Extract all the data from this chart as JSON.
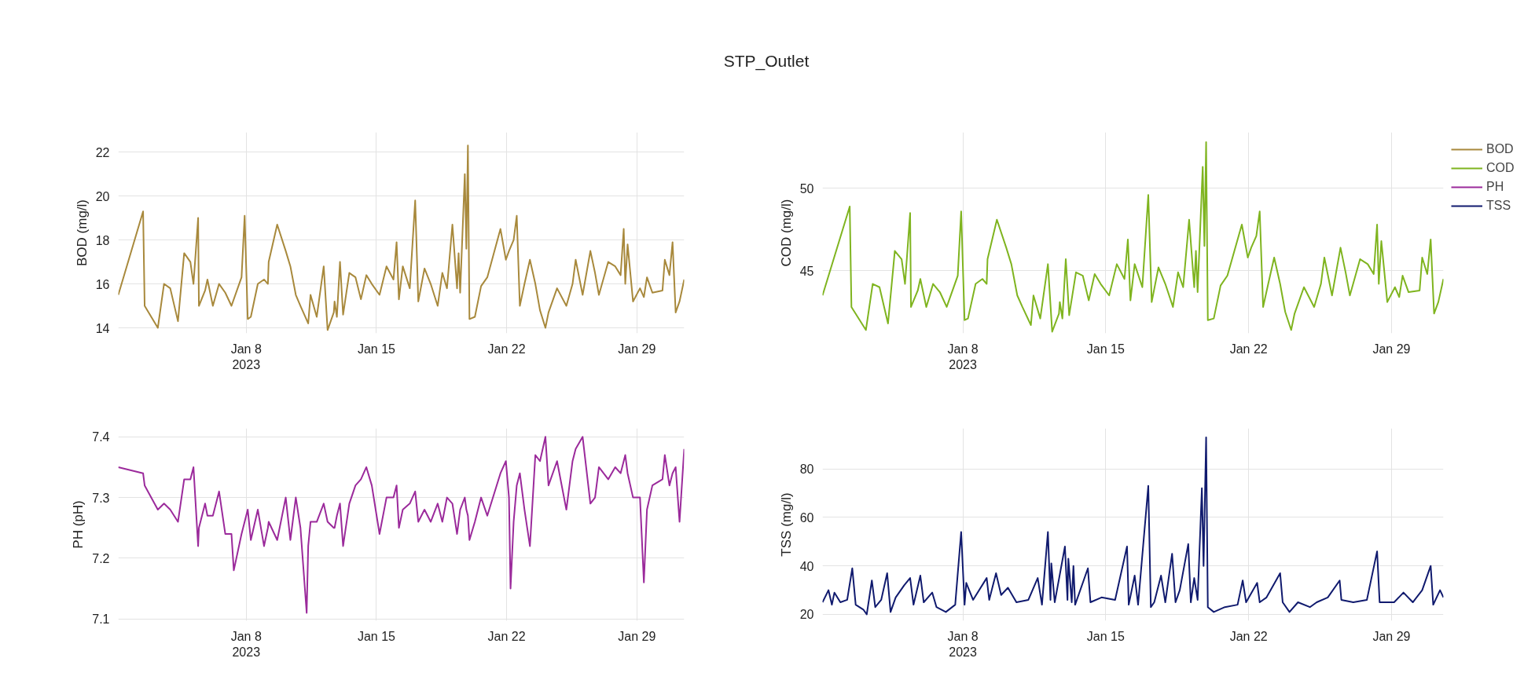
{
  "chart_data": [
    {
      "type": "line",
      "ylabel": "BOD (mg/l)",
      "grid": true,
      "legend": "top right",
      "xlim": [
        "2023-01-01T03:00",
        "2023-01-31T13:00"
      ],
      "ylim": [
        13.75,
        22.9
      ],
      "yticks": [
        14,
        16,
        18,
        20,
        22
      ],
      "xticks": [
        {
          "value": "2023-01-08",
          "label": "Jan 8\n2023"
        },
        {
          "value": "2023-01-15",
          "label": "Jan 15"
        },
        {
          "value": "2023-01-22",
          "label": "Jan 22"
        },
        {
          "value": "2023-01-29",
          "label": "Jan 29"
        }
      ],
      "x": [
        "2023-01-01T03:00",
        "2023-01-02T11:00",
        "2023-01-02T13:00",
        "2023-01-03T06:00",
        "2023-01-03T14:00",
        "2023-01-03T22:00",
        "2023-01-04T08:00",
        "2023-01-04T16:00",
        "2023-01-05T00:00",
        "2023-01-05T04:00",
        "2023-01-05T10:00",
        "2023-01-05T11:00",
        "2023-01-05T19:00",
        "2023-01-05T22:00",
        "2023-01-06T05:00",
        "2023-01-06T13:00",
        "2023-01-06T21:00",
        "2023-01-07T05:00",
        "2023-01-07T18:00",
        "2023-01-07T22:00",
        "2023-01-08T02:00",
        "2023-01-08T06:00",
        "2023-01-08T15:00",
        "2023-01-08T23:00",
        "2023-01-09T04:00",
        "2023-01-09T05:00",
        "2023-01-09T16:00",
        "2023-01-10T03:00",
        "2023-01-10T09:00",
        "2023-01-10T16:00",
        "2023-01-10T22:00",
        "2023-01-11T08:00",
        "2023-01-11T11:00",
        "2023-01-11T19:00",
        "2023-01-12T04:00",
        "2023-01-12T09:00",
        "2023-01-12T17:00",
        "2023-01-12T18:00",
        "2023-01-12T21:00",
        "2023-01-13T01:00",
        "2023-01-13T05:00",
        "2023-01-13T13:00",
        "2023-01-13T21:00",
        "2023-01-14T04:00",
        "2023-01-14T11:00",
        "2023-01-14T18:00",
        "2023-01-15T04:00",
        "2023-01-15T13:00",
        "2023-01-15T22:00",
        "2023-01-16T02:00",
        "2023-01-16T05:00",
        "2023-01-16T10:00",
        "2023-01-16T19:00",
        "2023-01-17T02:00",
        "2023-01-17T06:00",
        "2023-01-17T14:00",
        "2023-01-17T22:00",
        "2023-01-18T07:00",
        "2023-01-18T13:00",
        "2023-01-18T19:00",
        "2023-01-19T02:00",
        "2023-01-19T08:00",
        "2023-01-19T10:00",
        "2023-01-19T12:00",
        "2023-01-19T18:00",
        "2023-01-19T20:00",
        "2023-01-19T22:00",
        "2023-01-20T00:00",
        "2023-01-20T07:00",
        "2023-01-20T15:00",
        "2023-01-20T23:00",
        "2023-01-21T16:00",
        "2023-01-21T23:00",
        "2023-01-22T03:00",
        "2023-01-22T09:00",
        "2023-01-22T13:00",
        "2023-01-22T17:00",
        "2023-01-22T23:00",
        "2023-01-23T06:00",
        "2023-01-23T13:00",
        "2023-01-23T19:00",
        "2023-01-24T02:00",
        "2023-01-24T06:00",
        "2023-01-24T17:00",
        "2023-01-25T05:00",
        "2023-01-25T13:00",
        "2023-01-25T17:00",
        "2023-01-26T02:00",
        "2023-01-26T12:00",
        "2023-01-26T18:00",
        "2023-01-26T23:00",
        "2023-01-27T11:00",
        "2023-01-27T20:00",
        "2023-01-28T03:00",
        "2023-01-28T07:00",
        "2023-01-28T09:00",
        "2023-01-28T12:00",
        "2023-01-28T19:00",
        "2023-01-29T04:00",
        "2023-01-29T09:00",
        "2023-01-29T13:00",
        "2023-01-29T20:00",
        "2023-01-30T09:00",
        "2023-01-30T12:00",
        "2023-01-30T18:00",
        "2023-01-30T22:00",
        "2023-01-31T02:00",
        "2023-01-31T07:00",
        "2023-01-31T13:00"
      ],
      "series": [
        {
          "name": "BOD",
          "color": "#a8893c",
          "values": [
            15.5,
            19.3,
            15.0,
            14.0,
            16.0,
            15.8,
            14.3,
            17.4,
            17.0,
            16.0,
            19.0,
            15.0,
            15.7,
            16.2,
            15.0,
            16.0,
            15.6,
            15.0,
            16.3,
            19.1,
            14.4,
            14.5,
            16.0,
            16.2,
            16.0,
            17.0,
            18.7,
            17.5,
            16.8,
            15.5,
            15.0,
            14.2,
            15.5,
            14.5,
            16.8,
            13.9,
            14.7,
            15.2,
            14.5,
            17.0,
            14.6,
            16.5,
            16.3,
            15.3,
            16.4,
            16.0,
            15.5,
            16.8,
            16.2,
            17.9,
            15.3,
            16.8,
            15.8,
            19.8,
            15.2,
            16.7,
            16.0,
            15.0,
            16.5,
            15.8,
            18.7,
            15.8,
            17.4,
            15.6,
            21.0,
            17.6,
            22.3,
            14.4,
            14.5,
            15.9,
            16.3,
            18.5,
            17.1,
            17.5,
            18.0,
            19.1,
            15.0,
            16.0,
            17.1,
            16.0,
            14.8,
            14.0,
            14.7,
            15.8,
            15.0,
            16.0,
            17.1,
            15.5,
            17.5,
            16.5,
            15.5,
            17.0,
            16.8,
            16.4,
            18.5,
            16.0,
            17.8,
            15.2,
            15.8,
            15.4,
            16.3,
            15.6,
            15.7,
            17.1,
            16.4,
            17.9,
            14.7,
            15.2,
            16.2
          ]
        }
      ]
    },
    {
      "type": "line",
      "title": "STP_Outlet",
      "ylabel": "COD (mg/l)",
      "grid": true,
      "legend": "top right",
      "xlim": [
        "2023-01-01T03:00",
        "2023-01-31T13:00"
      ],
      "ylim": [
        41.2,
        53.4
      ],
      "yticks": [
        45,
        50
      ],
      "xticks": [
        {
          "value": "2023-01-08",
          "label": "Jan 8\n2023"
        },
        {
          "value": "2023-01-15",
          "label": "Jan 15"
        },
        {
          "value": "2023-01-22",
          "label": "Jan 22"
        },
        {
          "value": "2023-01-29",
          "label": "Jan 29"
        }
      ],
      "x": [
        "2023-01-01T03:00",
        "2023-01-02T11:00",
        "2023-01-02T13:00",
        "2023-01-03T06:00",
        "2023-01-03T14:00",
        "2023-01-03T22:00",
        "2023-01-04T08:00",
        "2023-01-04T16:00",
        "2023-01-05T00:00",
        "2023-01-05T04:00",
        "2023-01-05T10:00",
        "2023-01-05T11:00",
        "2023-01-05T19:00",
        "2023-01-05T22:00",
        "2023-01-06T05:00",
        "2023-01-06T13:00",
        "2023-01-06T21:00",
        "2023-01-07T05:00",
        "2023-01-07T18:00",
        "2023-01-07T22:00",
        "2023-01-08T02:00",
        "2023-01-08T06:00",
        "2023-01-08T15:00",
        "2023-01-08T23:00",
        "2023-01-09T04:00",
        "2023-01-09T05:00",
        "2023-01-09T16:00",
        "2023-01-10T03:00",
        "2023-01-10T09:00",
        "2023-01-10T16:00",
        "2023-01-10T22:00",
        "2023-01-11T08:00",
        "2023-01-11T11:00",
        "2023-01-11T19:00",
        "2023-01-12T04:00",
        "2023-01-12T09:00",
        "2023-01-12T17:00",
        "2023-01-12T18:00",
        "2023-01-12T21:00",
        "2023-01-13T01:00",
        "2023-01-13T05:00",
        "2023-01-13T13:00",
        "2023-01-13T21:00",
        "2023-01-14T04:00",
        "2023-01-14T11:00",
        "2023-01-14T18:00",
        "2023-01-15T04:00",
        "2023-01-15T13:00",
        "2023-01-15T22:00",
        "2023-01-16T02:00",
        "2023-01-16T05:00",
        "2023-01-16T10:00",
        "2023-01-16T19:00",
        "2023-01-17T02:00",
        "2023-01-17T06:00",
        "2023-01-17T14:00",
        "2023-01-17T22:00",
        "2023-01-18T07:00",
        "2023-01-18T13:00",
        "2023-01-18T19:00",
        "2023-01-19T02:00",
        "2023-01-19T08:00",
        "2023-01-19T10:00",
        "2023-01-19T12:00",
        "2023-01-19T18:00",
        "2023-01-19T20:00",
        "2023-01-19T22:00",
        "2023-01-20T00:00",
        "2023-01-20T07:00",
        "2023-01-20T15:00",
        "2023-01-20T23:00",
        "2023-01-21T16:00",
        "2023-01-21T23:00",
        "2023-01-22T03:00",
        "2023-01-22T09:00",
        "2023-01-22T13:00",
        "2023-01-22T17:00",
        "2023-01-22T23:00",
        "2023-01-23T06:00",
        "2023-01-23T13:00",
        "2023-01-23T19:00",
        "2023-01-24T02:00",
        "2023-01-24T06:00",
        "2023-01-24T17:00",
        "2023-01-25T05:00",
        "2023-01-25T13:00",
        "2023-01-25T17:00",
        "2023-01-26T02:00",
        "2023-01-26T12:00",
        "2023-01-26T18:00",
        "2023-01-26T23:00",
        "2023-01-27T11:00",
        "2023-01-27T20:00",
        "2023-01-28T03:00",
        "2023-01-28T07:00",
        "2023-01-28T09:00",
        "2023-01-28T12:00",
        "2023-01-28T19:00",
        "2023-01-29T04:00",
        "2023-01-29T09:00",
        "2023-01-29T13:00",
        "2023-01-29T20:00",
        "2023-01-30T09:00",
        "2023-01-30T12:00",
        "2023-01-30T18:00",
        "2023-01-30T22:00",
        "2023-01-31T02:00",
        "2023-01-31T07:00",
        "2023-01-31T13:00"
      ],
      "series": [
        {
          "name": "COD",
          "color": "#7fb41f",
          "values": [
            43.5,
            48.9,
            42.8,
            41.4,
            44.2,
            44.0,
            41.8,
            46.2,
            45.7,
            44.2,
            48.5,
            42.8,
            43.8,
            44.5,
            42.8,
            44.2,
            43.7,
            42.8,
            44.7,
            48.6,
            42.0,
            42.1,
            44.2,
            44.5,
            44.2,
            45.7,
            48.1,
            46.4,
            45.4,
            43.5,
            42.8,
            41.7,
            43.5,
            42.1,
            45.4,
            41.3,
            42.4,
            43.1,
            42.1,
            45.7,
            42.3,
            44.9,
            44.7,
            43.2,
            44.8,
            44.2,
            43.5,
            45.4,
            44.5,
            46.9,
            43.2,
            45.4,
            44.0,
            49.6,
            43.1,
            45.2,
            44.2,
            42.8,
            44.9,
            44.0,
            48.1,
            44.0,
            46.2,
            43.7,
            51.3,
            46.5,
            52.8,
            42.0,
            42.1,
            44.1,
            44.7,
            47.8,
            45.8,
            46.4,
            47.1,
            48.6,
            42.8,
            44.2,
            45.8,
            44.2,
            42.5,
            41.4,
            42.4,
            44.0,
            42.8,
            44.2,
            45.8,
            43.5,
            46.4,
            44.9,
            43.5,
            45.7,
            45.4,
            44.8,
            47.8,
            44.2,
            46.8,
            43.1,
            44.0,
            43.4,
            44.7,
            43.7,
            43.8,
            45.8,
            44.8,
            46.9,
            42.4,
            43.1,
            44.5
          ]
        }
      ]
    },
    {
      "type": "line",
      "ylabel": "PH (pH)",
      "grid": true,
      "legend": "top right",
      "xlim": [
        "2023-01-01T03:00",
        "2023-01-31T13:00"
      ],
      "ylim": [
        7.097,
        7.414
      ],
      "yticks": [
        7.1,
        7.2,
        7.3,
        7.4
      ],
      "xticks": [
        {
          "value": "2023-01-08",
          "label": "Jan 8\n2023"
        },
        {
          "value": "2023-01-15",
          "label": "Jan 15"
        },
        {
          "value": "2023-01-22",
          "label": "Jan 22"
        },
        {
          "value": "2023-01-29",
          "label": "Jan 29"
        }
      ],
      "x": [
        "2023-01-01T03:00",
        "2023-01-02T11:00",
        "2023-01-02T13:00",
        "2023-01-03T06:00",
        "2023-01-03T14:00",
        "2023-01-03T22:00",
        "2023-01-04T08:00",
        "2023-01-04T16:00",
        "2023-01-05T00:00",
        "2023-01-05T04:00",
        "2023-01-05T10:00",
        "2023-01-05T11:00",
        "2023-01-05T19:00",
        "2023-01-05T22:00",
        "2023-01-06T05:00",
        "2023-01-06T13:00",
        "2023-01-06T21:00",
        "2023-01-07T05:00",
        "2023-01-07T08:00",
        "2023-01-07T18:00",
        "2023-01-07T22:00",
        "2023-01-08T02:00",
        "2023-01-08T06:00",
        "2023-01-08T15:00",
        "2023-01-08T23:00",
        "2023-01-09T04:00",
        "2023-01-09T05:00",
        "2023-01-09T16:00",
        "2023-01-10T03:00",
        "2023-01-10T09:00",
        "2023-01-10T16:00",
        "2023-01-10T22:00",
        "2023-01-11T06:00",
        "2023-01-11T08:00",
        "2023-01-11T11:00",
        "2023-01-11T19:00",
        "2023-01-12T04:00",
        "2023-01-12T09:00",
        "2023-01-12T17:00",
        "2023-01-12T18:00",
        "2023-01-12T21:00",
        "2023-01-13T01:00",
        "2023-01-13T05:00",
        "2023-01-13T13:00",
        "2023-01-13T21:00",
        "2023-01-14T04:00",
        "2023-01-14T11:00",
        "2023-01-14T18:00",
        "2023-01-15T04:00",
        "2023-01-15T13:00",
        "2023-01-15T22:00",
        "2023-01-16T02:00",
        "2023-01-16T05:00",
        "2023-01-16T10:00",
        "2023-01-16T19:00",
        "2023-01-17T02:00",
        "2023-01-17T06:00",
        "2023-01-17T14:00",
        "2023-01-17T22:00",
        "2023-01-18T07:00",
        "2023-01-18T13:00",
        "2023-01-18T19:00",
        "2023-01-19T02:00",
        "2023-01-19T08:00",
        "2023-01-19T10:00",
        "2023-01-19T12:00",
        "2023-01-19T18:00",
        "2023-01-19T20:00",
        "2023-01-19T22:00",
        "2023-01-20T00:00",
        "2023-01-20T07:00",
        "2023-01-20T15:00",
        "2023-01-20T23:00",
        "2023-01-21T16:00",
        "2023-01-21T23:00",
        "2023-01-22T03:00",
        "2023-01-22T05:00",
        "2023-01-22T09:00",
        "2023-01-22T13:00",
        "2023-01-22T17:00",
        "2023-01-22T23:00",
        "2023-01-23T06:00",
        "2023-01-23T13:00",
        "2023-01-23T19:00",
        "2023-01-24T02:00",
        "2023-01-24T06:00",
        "2023-01-24T17:00",
        "2023-01-25T05:00",
        "2023-01-25T13:00",
        "2023-01-25T17:00",
        "2023-01-26T02:00",
        "2023-01-26T12:00",
        "2023-01-26T18:00",
        "2023-01-26T23:00",
        "2023-01-27T11:00",
        "2023-01-27T20:00",
        "2023-01-28T03:00",
        "2023-01-28T07:00",
        "2023-01-28T09:00",
        "2023-01-28T12:00",
        "2023-01-28T19:00",
        "2023-01-29T04:00",
        "2023-01-29T09:00",
        "2023-01-29T13:00",
        "2023-01-29T20:00",
        "2023-01-30T09:00",
        "2023-01-30T12:00",
        "2023-01-30T18:00",
        "2023-01-30T22:00",
        "2023-01-31T02:00",
        "2023-01-31T07:00",
        "2023-01-31T13:00"
      ],
      "series": [
        {
          "name": "PH",
          "color": "#9b2a9b",
          "values": [
            7.35,
            7.34,
            7.32,
            7.28,
            7.29,
            7.28,
            7.26,
            7.33,
            7.33,
            7.35,
            7.22,
            7.25,
            7.29,
            7.27,
            7.27,
            7.31,
            7.24,
            7.24,
            7.18,
            7.24,
            7.26,
            7.28,
            7.23,
            7.28,
            7.22,
            7.25,
            7.26,
            7.23,
            7.3,
            7.23,
            7.3,
            7.25,
            7.11,
            7.22,
            7.26,
            7.26,
            7.29,
            7.26,
            7.25,
            7.25,
            7.27,
            7.29,
            7.22,
            7.29,
            7.32,
            7.33,
            7.35,
            7.32,
            7.24,
            7.3,
            7.3,
            7.32,
            7.25,
            7.28,
            7.29,
            7.31,
            7.26,
            7.28,
            7.26,
            7.29,
            7.26,
            7.3,
            7.29,
            7.24,
            7.26,
            7.28,
            7.3,
            7.28,
            7.27,
            7.23,
            7.26,
            7.3,
            7.27,
            7.34,
            7.36,
            7.3,
            7.15,
            7.26,
            7.32,
            7.34,
            7.28,
            7.22,
            7.37,
            7.36,
            7.4,
            7.32,
            7.36,
            7.28,
            7.36,
            7.38,
            7.4,
            7.29,
            7.3,
            7.35,
            7.33,
            7.35,
            7.34,
            7.36,
            7.37,
            7.34,
            7.3,
            7.3,
            7.16,
            7.28,
            7.32,
            7.33,
            7.37,
            7.32,
            7.34,
            7.35,
            7.26,
            7.38
          ]
        }
      ]
    },
    {
      "type": "line",
      "ylabel": "TSS (mg/l)",
      "grid": true,
      "legend": "top right",
      "xlim": [
        "2023-01-01T03:00",
        "2023-01-31T13:00"
      ],
      "ylim": [
        17.4,
        96.7
      ],
      "yticks": [
        20,
        40,
        60,
        80
      ],
      "xticks": [
        {
          "value": "2023-01-08",
          "label": "Jan 8\n2023"
        },
        {
          "value": "2023-01-15",
          "label": "Jan 15"
        },
        {
          "value": "2023-01-22",
          "label": "Jan 22"
        },
        {
          "value": "2023-01-29",
          "label": "Jan 29"
        }
      ],
      "x": [
        "2023-01-01T03:00",
        "2023-01-01T10:00",
        "2023-01-01T14:00",
        "2023-01-01T17:00",
        "2023-01-02T00:00",
        "2023-01-02T08:00",
        "2023-01-02T14:00",
        "2023-01-02T18:00",
        "2023-01-03T03:00",
        "2023-01-03T07:00",
        "2023-01-03T13:00",
        "2023-01-03T17:00",
        "2023-01-04T00:00",
        "2023-01-04T07:00",
        "2023-01-04T11:00",
        "2023-01-04T17:00",
        "2023-01-05T03:00",
        "2023-01-05T10:00",
        "2023-01-05T14:00",
        "2023-01-05T22:00",
        "2023-01-06T02:00",
        "2023-01-06T12:00",
        "2023-01-06T17:00",
        "2023-01-07T04:00",
        "2023-01-07T15:00",
        "2023-01-07T22:00",
        "2023-01-08T02:00",
        "2023-01-08T04:00",
        "2023-01-08T12:00",
        "2023-01-09T04:00",
        "2023-01-09T07:00",
        "2023-01-09T15:00",
        "2023-01-09T21:00",
        "2023-01-10T05:00",
        "2023-01-10T15:00",
        "2023-01-11T05:00",
        "2023-01-11T16:00",
        "2023-01-11T21:00",
        "2023-01-12T04:00",
        "2023-01-12T07:00",
        "2023-01-12T08:00",
        "2023-01-12T12:00",
        "2023-01-13T00:00",
        "2023-01-13T03:00",
        "2023-01-13T04:00",
        "2023-01-13T08:00",
        "2023-01-13T10:00",
        "2023-01-13T12:00",
        "2023-01-14T03:00",
        "2023-01-14T06:00",
        "2023-01-14T19:00",
        "2023-01-15T11:00",
        "2023-01-16T01:00",
        "2023-01-16T03:00",
        "2023-01-16T10:00",
        "2023-01-16T14:00",
        "2023-01-17T02:00",
        "2023-01-17T05:00",
        "2023-01-17T09:00",
        "2023-01-17T17:00",
        "2023-01-17T22:00",
        "2023-01-18T06:00",
        "2023-01-18T10:00",
        "2023-01-18T15:00",
        "2023-01-19T01:00",
        "2023-01-19T04:00",
        "2023-01-19T08:00",
        "2023-01-19T12:00",
        "2023-01-19T17:00",
        "2023-01-19T19:00",
        "2023-01-19T22:00",
        "2023-01-20T00:00",
        "2023-01-20T07:00",
        "2023-01-20T20:00",
        "2023-01-21T11:00",
        "2023-01-21T17:00",
        "2023-01-21T21:00",
        "2023-01-22T10:00",
        "2023-01-22T13:00",
        "2023-01-22T21:00",
        "2023-01-23T13:00",
        "2023-01-23T16:00",
        "2023-01-24T00:00",
        "2023-01-24T10:00",
        "2023-01-25T00:00",
        "2023-01-25T08:00",
        "2023-01-25T21:00",
        "2023-01-26T11:00",
        "2023-01-26T13:00",
        "2023-01-27T03:00",
        "2023-01-27T19:00",
        "2023-01-28T07:00",
        "2023-01-28T10:00",
        "2023-01-29T03:00",
        "2023-01-29T14:00",
        "2023-01-30T01:00",
        "2023-01-30T12:00",
        "2023-01-30T22:00",
        "2023-01-31T01:00",
        "2023-01-31T09:00",
        "2023-01-31T13:00"
      ],
      "series": [
        {
          "name": "TSS",
          "color": "#101a6e",
          "values": [
            25,
            30,
            24,
            29,
            25,
            26,
            39,
            24,
            22,
            20,
            34,
            23,
            26,
            37,
            21,
            27,
            32,
            35,
            24,
            36,
            25,
            29,
            23,
            21,
            24,
            54,
            24,
            33,
            26,
            35,
            26,
            37,
            28,
            31,
            25,
            26,
            35,
            24,
            54,
            26,
            41,
            25,
            48,
            26,
            43,
            25,
            40,
            24,
            39,
            25,
            27,
            26,
            48,
            24,
            36,
            24,
            73,
            23,
            25,
            36,
            25,
            45,
            25,
            30,
            49,
            25,
            35,
            26,
            72,
            40,
            93,
            23,
            21,
            23,
            24,
            34,
            25,
            33,
            25,
            27,
            37,
            25,
            21,
            25,
            23,
            25,
            27,
            34,
            26,
            25,
            26,
            46,
            25,
            25,
            29,
            25,
            30,
            40,
            24,
            30,
            27
          ]
        }
      ]
    }
  ]
}
